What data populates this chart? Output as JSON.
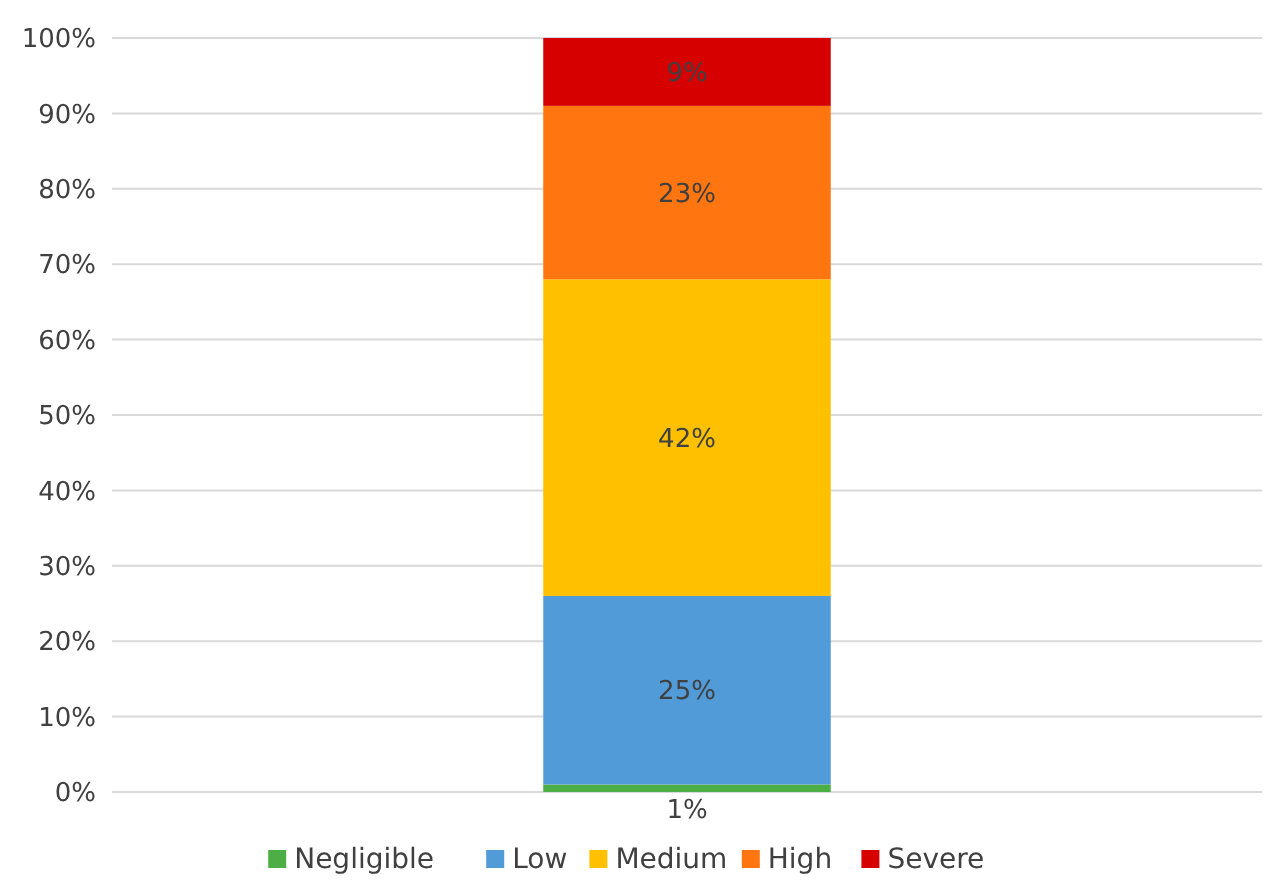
{
  "chart_data": {
    "type": "bar",
    "stacked": true,
    "categories": [
      null
    ],
    "series": [
      {
        "name": "Negligible",
        "color": "#4eae46",
        "values": [
          1
        ],
        "value_labels": [
          "1%"
        ]
      },
      {
        "name": "Low",
        "color": "#519bd9",
        "values": [
          25
        ],
        "value_labels": [
          "25%"
        ]
      },
      {
        "name": "Medium",
        "color": "#ffc000",
        "values": [
          42
        ],
        "value_labels": [
          "42%"
        ]
      },
      {
        "name": "High",
        "color": "#ff750f",
        "values": [
          23
        ],
        "value_labels": [
          "23%"
        ]
      },
      {
        "name": "Severe",
        "color": "#d60000",
        "values": [
          9
        ],
        "value_labels": [
          "9%"
        ]
      }
    ],
    "ylim": [
      0,
      100
    ],
    "yticks": [
      {
        "value": 0,
        "label": "0%"
      },
      {
        "value": 10,
        "label": "10%"
      },
      {
        "value": 20,
        "label": "20%"
      },
      {
        "value": 30,
        "label": "30%"
      },
      {
        "value": 40,
        "label": "40%"
      },
      {
        "value": 50,
        "label": "50%"
      },
      {
        "value": 60,
        "label": "60%"
      },
      {
        "value": 70,
        "label": "70%"
      },
      {
        "value": 80,
        "label": "80%"
      },
      {
        "value": 90,
        "label": "90%"
      },
      {
        "value": 100,
        "label": "100%"
      }
    ],
    "grid": "y",
    "legend": "bottom"
  }
}
